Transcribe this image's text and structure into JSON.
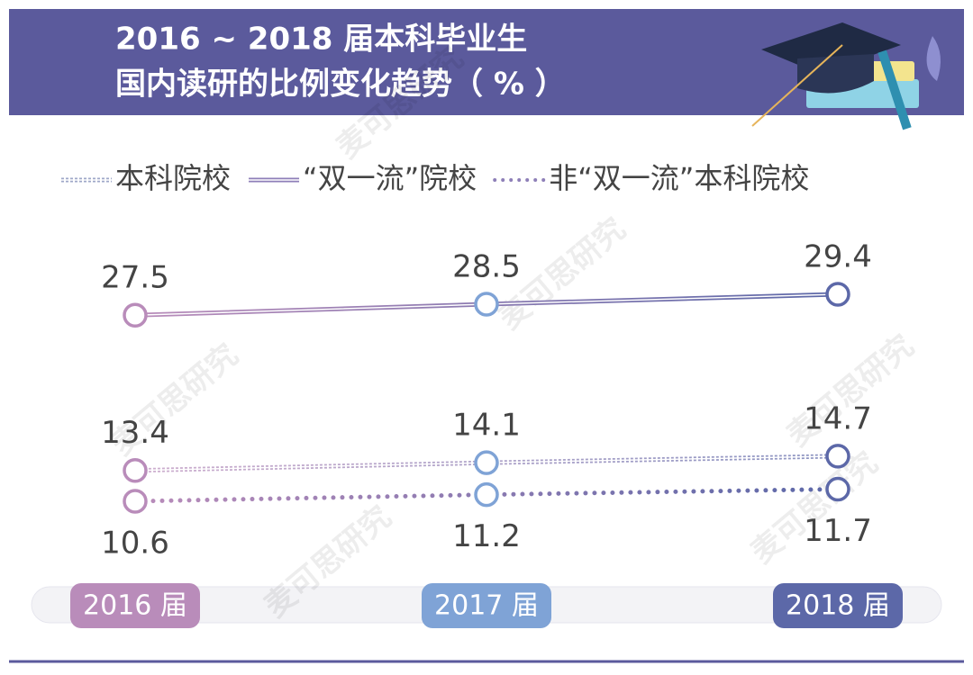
{
  "chart_data": {
    "type": "line",
    "title": "2016 ~ 2018 届本科毕业生",
    "subtitle": "国内读研的比例变化趋势（ % ）",
    "watermark": "麦可思研究",
    "categories": [
      "2016 届",
      "2017 届",
      "2018 届"
    ],
    "category_colors": [
      "#b98cba",
      "#7fa3d6",
      "#5c68a8"
    ],
    "series": [
      {
        "name": "本科院校",
        "color": "#9fa8c8",
        "style": "dashed-double",
        "values": [
          13.4,
          14.1,
          14.7
        ],
        "label_position": "above"
      },
      {
        "name": "“双一流”院校",
        "color": "#8e7fb8",
        "style": "double",
        "values": [
          27.5,
          28.5,
          29.4
        ],
        "label_position": "above"
      },
      {
        "name": "非“双一流”本科院校",
        "color": "#8e7fb8",
        "style": "dotted",
        "values": [
          10.6,
          11.2,
          11.7
        ],
        "label_position": "below"
      }
    ]
  }
}
